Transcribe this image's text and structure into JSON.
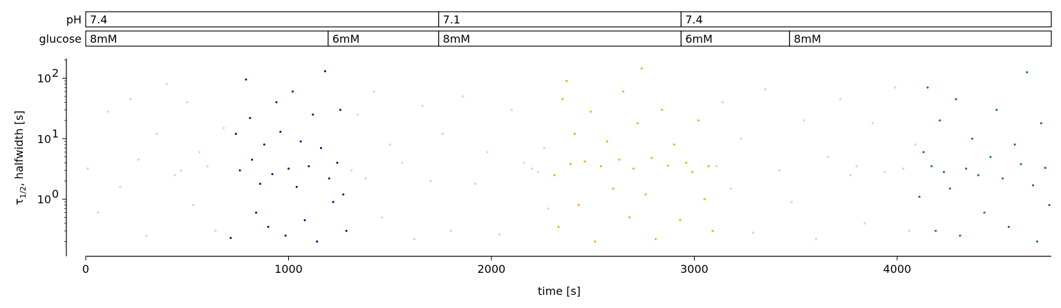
{
  "chart_data": {
    "type": "scatter",
    "x_label": "time [s]",
    "y_label_main": "τ",
    "y_label_sub": "1/2",
    "y_label_rest": ",  halfwidth [s]",
    "y_scale": "log",
    "xlim": [
      0,
      4760
    ],
    "ylim": [
      0.12,
      200
    ],
    "x_ticks": [
      0,
      1000,
      2000,
      3000,
      4000
    ],
    "x_tick_labels": [
      "0",
      "1000",
      "2000",
      "3000",
      "4000"
    ],
    "y_ticks": [
      1,
      10,
      100
    ],
    "y_tick_labels": [
      "10",
      "10",
      "10"
    ],
    "y_tick_exponents": [
      "0",
      "1",
      "2"
    ],
    "grid": false,
    "conditions": [
      {
        "label": "pH",
        "segments": [
          {
            "start": 0,
            "end": 1740,
            "text": "7.4"
          },
          {
            "start": 1740,
            "end": 2935,
            "text": "7.1"
          },
          {
            "start": 2935,
            "end": 4760,
            "text": "7.4"
          }
        ]
      },
      {
        "label": "glucose",
        "segments": [
          {
            "start": 0,
            "end": 1195,
            "text": "8mM"
          },
          {
            "start": 1195,
            "end": 1740,
            "text": "6mM"
          },
          {
            "start": 1740,
            "end": 2935,
            "text": "8mM"
          },
          {
            "start": 2935,
            "end": 3470,
            "text": "6mM"
          },
          {
            "start": 3470,
            "end": 4760,
            "text": "8mM"
          }
        ]
      }
    ],
    "series": [
      {
        "color": "#d3d3d3",
        "time_range": [
          0,
          4760
        ],
        "points": [
          [
            10,
            3.2
          ],
          [
            60,
            0.6
          ],
          [
            110,
            28
          ],
          [
            170,
            1.6
          ],
          [
            220,
            45
          ],
          [
            260,
            4.5
          ],
          [
            300,
            0.25
          ],
          [
            350,
            12
          ],
          [
            400,
            80
          ],
          [
            440,
            2.5
          ],
          [
            470,
            3.0
          ],
          [
            500,
            40
          ],
          [
            530,
            0.8
          ],
          [
            560,
            6
          ],
          [
            600,
            3.5
          ],
          [
            640,
            0.3
          ],
          [
            680,
            15
          ],
          [
            1310,
            3.0
          ],
          [
            1340,
            25
          ],
          [
            1380,
            2.2
          ],
          [
            1420,
            60
          ],
          [
            1460,
            0.5
          ],
          [
            1500,
            8
          ],
          [
            1560,
            4
          ],
          [
            1620,
            0.22
          ],
          [
            1660,
            35
          ],
          [
            1700,
            2.0
          ],
          [
            1760,
            12
          ],
          [
            1800,
            0.3
          ],
          [
            1860,
            50
          ],
          [
            1920,
            1.8
          ],
          [
            1980,
            6
          ],
          [
            2040,
            0.26
          ],
          [
            2100,
            30
          ],
          [
            2160,
            4
          ],
          [
            2200,
            3.2
          ],
          [
            2230,
            2.8
          ],
          [
            2260,
            7
          ],
          [
            2280,
            0.7
          ],
          [
            3110,
            3.5
          ],
          [
            3140,
            40
          ],
          [
            3180,
            1.5
          ],
          [
            3230,
            10
          ],
          [
            3290,
            0.28
          ],
          [
            3350,
            65
          ],
          [
            3420,
            3
          ],
          [
            3480,
            0.9
          ],
          [
            3540,
            20
          ],
          [
            3600,
            0.22
          ],
          [
            3660,
            5
          ],
          [
            3720,
            45
          ],
          [
            3770,
            2.5
          ],
          [
            3800,
            3.5
          ],
          [
            3840,
            0.4
          ],
          [
            3880,
            18
          ],
          [
            3940,
            2.8
          ],
          [
            3990,
            70
          ],
          [
            4030,
            3.2
          ],
          [
            4060,
            0.3
          ],
          [
            4090,
            8
          ]
        ]
      },
      {
        "color": "#000080",
        "time_range": [
          700,
          1300
        ],
        "points": [
          [
            715,
            0.23
          ],
          [
            740,
            12
          ],
          [
            760,
            3
          ],
          [
            790,
            95
          ],
          [
            810,
            22
          ],
          [
            820,
            4.5
          ],
          [
            840,
            0.6
          ],
          [
            860,
            1.8
          ],
          [
            880,
            8
          ],
          [
            900,
            0.35
          ],
          [
            920,
            2.6
          ],
          [
            940,
            40
          ],
          [
            960,
            13
          ],
          [
            985,
            0.25
          ],
          [
            1000,
            3.2
          ],
          [
            1020,
            60
          ],
          [
            1040,
            1.6
          ],
          [
            1060,
            9
          ],
          [
            1080,
            0.45
          ],
          [
            1100,
            3.5
          ],
          [
            1120,
            25
          ],
          [
            1140,
            0.2
          ],
          [
            1160,
            7
          ],
          [
            1180,
            130
          ],
          [
            1200,
            2.2
          ],
          [
            1220,
            0.9
          ],
          [
            1240,
            4
          ],
          [
            1255,
            30
          ],
          [
            1270,
            1.2
          ],
          [
            1285,
            0.3
          ]
        ]
      },
      {
        "color": "#ffa500",
        "time_range": [
          2300,
          3100
        ],
        "points": [
          [
            2310,
            2.5
          ],
          [
            2330,
            0.35
          ],
          [
            2350,
            45
          ],
          [
            2370,
            90
          ],
          [
            2390,
            3.8
          ],
          [
            2410,
            12
          ],
          [
            2430,
            0.8
          ],
          [
            2460,
            4.2
          ],
          [
            2490,
            28
          ],
          [
            2510,
            0.2
          ],
          [
            2540,
            3.5
          ],
          [
            2570,
            9
          ],
          [
            2600,
            1.5
          ],
          [
            2630,
            4.5
          ],
          [
            2650,
            60
          ],
          [
            2680,
            0.5
          ],
          [
            2700,
            3.2
          ],
          [
            2720,
            18
          ],
          [
            2740,
            145
          ],
          [
            2760,
            1.2
          ],
          [
            2790,
            4.8
          ],
          [
            2810,
            0.22
          ],
          [
            2840,
            30
          ],
          [
            2870,
            3.6
          ],
          [
            2900,
            8
          ],
          [
            2930,
            0.45
          ],
          [
            2960,
            4
          ],
          [
            2990,
            2.8
          ],
          [
            3020,
            20
          ],
          [
            3050,
            1.0
          ],
          [
            3070,
            3.5
          ],
          [
            3090,
            0.3
          ]
        ]
      },
      {
        "color": "#008000",
        "time_range": [
          4100,
          4760
        ],
        "points": [
          [
            4110,
            1.1
          ],
          [
            4130,
            6
          ],
          [
            4150,
            70
          ],
          [
            4170,
            3.5
          ],
          [
            4190,
            0.3
          ],
          [
            4210,
            20
          ],
          [
            4230,
            2.8
          ],
          [
            4260,
            1.5
          ],
          [
            4290,
            45
          ],
          [
            4310,
            0.25
          ],
          [
            4340,
            3.2
          ],
          [
            4370,
            10
          ],
          [
            4400,
            2.5
          ],
          [
            4430,
            0.6
          ],
          [
            4460,
            5
          ],
          [
            4490,
            30
          ],
          [
            4520,
            2.2
          ],
          [
            4550,
            0.35
          ],
          [
            4580,
            8
          ],
          [
            4610,
            3.8
          ],
          [
            4640,
            125
          ],
          [
            4670,
            1.7
          ],
          [
            4690,
            0.2
          ],
          [
            4710,
            18
          ],
          [
            4730,
            3.3
          ],
          [
            4750,
            0.8
          ]
        ]
      }
    ]
  }
}
